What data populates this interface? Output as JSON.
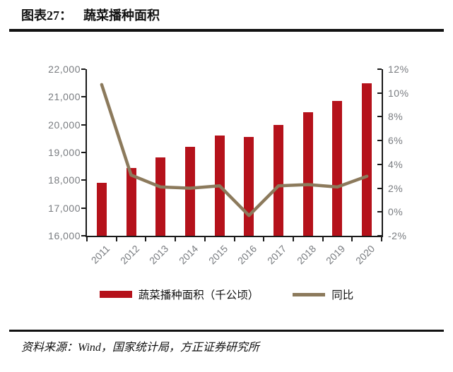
{
  "header": {
    "figure_label": "图表27：",
    "figure_title": "蔬菜播种面积"
  },
  "footer": {
    "source": "资料来源：Wind，国家统计局，方正证券研究所"
  },
  "chart_data": {
    "type": "bar+line",
    "categories": [
      "2011",
      "2012",
      "2013",
      "2014",
      "2015",
      "2016",
      "2017",
      "2018",
      "2019",
      "2020"
    ],
    "series": [
      {
        "name": "蔬菜播种面积（千公顷）",
        "type": "bar",
        "axis": "left",
        "color": "#B5121B",
        "values": [
          17898,
          18453,
          18835,
          19205,
          19623,
          19556,
          19982,
          20439,
          20863,
          21487
        ]
      },
      {
        "name": "同比",
        "type": "line",
        "axis": "right",
        "color": "#8C7A5C",
        "unit": "%",
        "values": [
          10.7,
          3.1,
          2.1,
          2.0,
          2.2,
          -0.3,
          2.2,
          2.3,
          2.1,
          3.0
        ]
      }
    ],
    "left_axis": {
      "min": 16000,
      "max": 22000,
      "tick_labels": [
        "22,000",
        "21,000",
        "20,000",
        "19,000",
        "18,000",
        "17,000",
        "16,000"
      ]
    },
    "right_axis": {
      "min": -2,
      "max": 12,
      "tick_labels": [
        "12%",
        "10%",
        "8%",
        "6%",
        "4%",
        "2%",
        "0%",
        "-2%"
      ]
    },
    "legend_position": "bottom",
    "grid": false,
    "colors": {
      "axis_line": "#1a1a1a",
      "tick_label": "#797c80"
    }
  }
}
